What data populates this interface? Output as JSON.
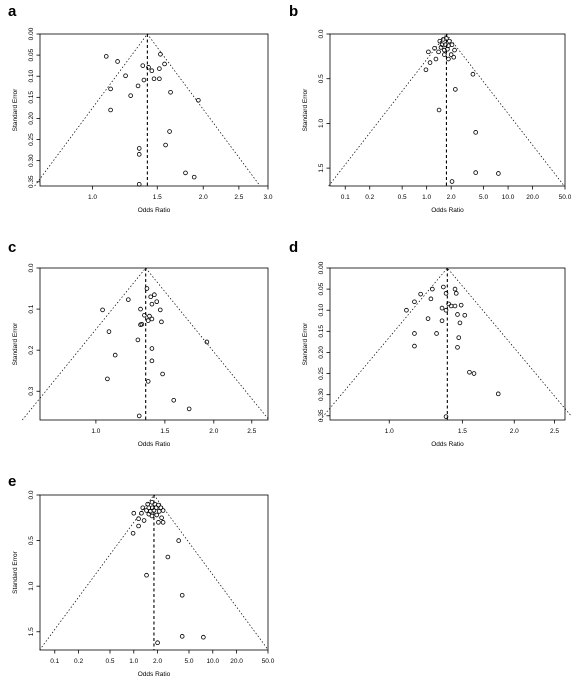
{
  "chart_data": [
    {
      "type": "scatter",
      "panel_label": "a",
      "xlabel": "Odds Ratio",
      "ylabel": "Standard Error",
      "x_scale": "log",
      "xlim": [
        0.72,
        3.0
      ],
      "ylim": [
        0.0,
        0.36
      ],
      "y_inverted": true,
      "x_ticks": [
        "1.0",
        "1.5",
        "2.0",
        "2.5",
        "3.0"
      ],
      "y_ticks": [
        "0.00",
        "0.05",
        "0.10",
        "0.15",
        "0.20",
        "0.25",
        "0.30",
        "0.35"
      ],
      "pooled_or": 1.41,
      "funnel": "95% pseudo-confidence limits (dotted)",
      "points": [
        {
          "x": 1.09,
          "y": 0.053
        },
        {
          "x": 1.17,
          "y": 0.065
        },
        {
          "x": 1.53,
          "y": 0.048
        },
        {
          "x": 1.37,
          "y": 0.075
        },
        {
          "x": 1.42,
          "y": 0.079
        },
        {
          "x": 1.45,
          "y": 0.087
        },
        {
          "x": 1.57,
          "y": 0.071
        },
        {
          "x": 1.52,
          "y": 0.082
        },
        {
          "x": 1.23,
          "y": 0.099
        },
        {
          "x": 1.38,
          "y": 0.109
        },
        {
          "x": 1.47,
          "y": 0.106
        },
        {
          "x": 1.52,
          "y": 0.106
        },
        {
          "x": 1.12,
          "y": 0.13
        },
        {
          "x": 1.33,
          "y": 0.123
        },
        {
          "x": 1.27,
          "y": 0.146
        },
        {
          "x": 1.63,
          "y": 0.138
        },
        {
          "x": 1.94,
          "y": 0.157
        },
        {
          "x": 1.12,
          "y": 0.18
        },
        {
          "x": 1.62,
          "y": 0.231
        },
        {
          "x": 1.58,
          "y": 0.263
        },
        {
          "x": 1.34,
          "y": 0.271
        },
        {
          "x": 1.34,
          "y": 0.285
        },
        {
          "x": 1.79,
          "y": 0.329
        },
        {
          "x": 1.89,
          "y": 0.339
        },
        {
          "x": 1.34,
          "y": 0.356
        }
      ]
    },
    {
      "type": "scatter",
      "panel_label": "b",
      "xlabel": "Odds Ratio",
      "ylabel": "Standard Error",
      "x_scale": "log",
      "xlim": [
        0.065,
        50
      ],
      "ylim": [
        0.0,
        1.7
      ],
      "y_inverted": true,
      "x_ticks": [
        "0.1",
        "0.2",
        "0.5",
        "1.0",
        "2.0",
        "5.0",
        "10.0",
        "20.0",
        "50.0"
      ],
      "y_ticks": [
        "0.0",
        "0.5",
        "1.0",
        "1.5"
      ],
      "pooled_or": 1.75,
      "funnel": "95% pseudo-confidence limits (dotted)",
      "points": [
        {
          "x": 1.45,
          "y": 0.08
        },
        {
          "x": 1.6,
          "y": 0.06
        },
        {
          "x": 1.75,
          "y": 0.05
        },
        {
          "x": 1.9,
          "y": 0.08
        },
        {
          "x": 1.55,
          "y": 0.12
        },
        {
          "x": 1.7,
          "y": 0.12
        },
        {
          "x": 1.85,
          "y": 0.13
        },
        {
          "x": 2.05,
          "y": 0.12
        },
        {
          "x": 1.25,
          "y": 0.16
        },
        {
          "x": 1.5,
          "y": 0.15
        },
        {
          "x": 1.65,
          "y": 0.18
        },
        {
          "x": 1.8,
          "y": 0.17
        },
        {
          "x": 2.2,
          "y": 0.18
        },
        {
          "x": 1.05,
          "y": 0.2
        },
        {
          "x": 1.4,
          "y": 0.2
        },
        {
          "x": 1.65,
          "y": 0.23
        },
        {
          "x": 2.0,
          "y": 0.23
        },
        {
          "x": 1.3,
          "y": 0.28
        },
        {
          "x": 1.85,
          "y": 0.28
        },
        {
          "x": 2.15,
          "y": 0.26
        },
        {
          "x": 1.1,
          "y": 0.32
        },
        {
          "x": 0.98,
          "y": 0.4
        },
        {
          "x": 3.7,
          "y": 0.45
        },
        {
          "x": 2.25,
          "y": 0.62
        },
        {
          "x": 1.42,
          "y": 0.85
        },
        {
          "x": 4.0,
          "y": 1.1
        },
        {
          "x": 4.0,
          "y": 1.55
        },
        {
          "x": 7.6,
          "y": 1.56
        },
        {
          "x": 2.05,
          "y": 1.65
        }
      ]
    },
    {
      "type": "scatter",
      "panel_label": "c",
      "xlabel": "Odds Ratio",
      "ylabel": "Standard Error",
      "x_scale": "log",
      "xlim": [
        0.72,
        2.75
      ],
      "ylim": [
        0.0,
        0.37
      ],
      "y_inverted": true,
      "x_ticks": [
        "1.0",
        "1.5",
        "2.0",
        "2.5"
      ],
      "y_ticks": [
        "0.0",
        "0.1",
        "0.2",
        "0.3"
      ],
      "pooled_or": 1.34,
      "funnel": "95% pseudo-confidence limits (dotted)",
      "points": [
        {
          "x": 1.35,
          "y": 0.05
        },
        {
          "x": 1.41,
          "y": 0.065
        },
        {
          "x": 1.38,
          "y": 0.07
        },
        {
          "x": 1.21,
          "y": 0.077
        },
        {
          "x": 1.43,
          "y": 0.082
        },
        {
          "x": 1.39,
          "y": 0.088
        },
        {
          "x": 1.3,
          "y": 0.1
        },
        {
          "x": 1.04,
          "y": 0.102
        },
        {
          "x": 1.46,
          "y": 0.102
        },
        {
          "x": 1.33,
          "y": 0.115
        },
        {
          "x": 1.37,
          "y": 0.117
        },
        {
          "x": 1.39,
          "y": 0.124
        },
        {
          "x": 1.3,
          "y": 0.138
        },
        {
          "x": 1.36,
          "y": 0.128
        },
        {
          "x": 1.47,
          "y": 0.131
        },
        {
          "x": 1.31,
          "y": 0.137
        },
        {
          "x": 1.08,
          "y": 0.155
        },
        {
          "x": 1.28,
          "y": 0.175
        },
        {
          "x": 1.92,
          "y": 0.18
        },
        {
          "x": 1.39,
          "y": 0.196
        },
        {
          "x": 1.12,
          "y": 0.212
        },
        {
          "x": 1.39,
          "y": 0.226
        },
        {
          "x": 1.48,
          "y": 0.258
        },
        {
          "x": 1.07,
          "y": 0.27
        },
        {
          "x": 1.36,
          "y": 0.276
        },
        {
          "x": 1.58,
          "y": 0.322
        },
        {
          "x": 1.73,
          "y": 0.343
        },
        {
          "x": 1.29,
          "y": 0.36
        }
      ]
    },
    {
      "type": "scatter",
      "panel_label": "d",
      "xlabel": "Odds Ratio",
      "ylabel": "Standard Error",
      "x_scale": "log",
      "xlim": [
        0.72,
        2.65
      ],
      "ylim": [
        0.0,
        0.36
      ],
      "y_inverted": true,
      "x_ticks": [
        "1.0",
        "1.5",
        "2.0",
        "2.5"
      ],
      "y_ticks": [
        "0.00",
        "0.05",
        "0.10",
        "0.15",
        "0.20",
        "0.25",
        "0.30",
        "0.35"
      ],
      "pooled_or": 1.38,
      "funnel": "95% pseudo-confidence limits (dotted)",
      "points": [
        {
          "x": 1.35,
          "y": 0.045
        },
        {
          "x": 1.27,
          "y": 0.05
        },
        {
          "x": 1.44,
          "y": 0.05
        },
        {
          "x": 1.37,
          "y": 0.06
        },
        {
          "x": 1.45,
          "y": 0.06
        },
        {
          "x": 1.19,
          "y": 0.062
        },
        {
          "x": 1.26,
          "y": 0.073
        },
        {
          "x": 1.15,
          "y": 0.08
        },
        {
          "x": 1.39,
          "y": 0.085
        },
        {
          "x": 1.41,
          "y": 0.09
        },
        {
          "x": 1.44,
          "y": 0.09
        },
        {
          "x": 1.49,
          "y": 0.088
        },
        {
          "x": 1.1,
          "y": 0.1
        },
        {
          "x": 1.34,
          "y": 0.095
        },
        {
          "x": 1.37,
          "y": 0.1
        },
        {
          "x": 1.46,
          "y": 0.11
        },
        {
          "x": 1.52,
          "y": 0.112
        },
        {
          "x": 1.24,
          "y": 0.12
        },
        {
          "x": 1.34,
          "y": 0.125
        },
        {
          "x": 1.48,
          "y": 0.13
        },
        {
          "x": 1.15,
          "y": 0.155
        },
        {
          "x": 1.3,
          "y": 0.155
        },
        {
          "x": 1.47,
          "y": 0.165
        },
        {
          "x": 1.15,
          "y": 0.185
        },
        {
          "x": 1.46,
          "y": 0.188
        },
        {
          "x": 1.56,
          "y": 0.247
        },
        {
          "x": 1.6,
          "y": 0.25
        },
        {
          "x": 1.83,
          "y": 0.298
        },
        {
          "x": 1.37,
          "y": 0.352
        }
      ]
    },
    {
      "type": "scatter",
      "panel_label": "e",
      "xlabel": "Odds Ratio",
      "ylabel": "Standard Error",
      "x_scale": "log",
      "xlim": [
        0.065,
        50
      ],
      "ylim": [
        0.0,
        1.7
      ],
      "y_inverted": true,
      "x_ticks": [
        "0.1",
        "0.2",
        "0.5",
        "1.0",
        "2.0",
        "5.0",
        "10.0",
        "20.0",
        "50.0"
      ],
      "y_ticks": [
        "0.0",
        "0.5",
        "1.0",
        "1.5"
      ],
      "pooled_or": 1.8,
      "funnel": "95% pseudo-confidence limits (dotted)",
      "points": [
        {
          "x": 1.5,
          "y": 0.1
        },
        {
          "x": 1.7,
          "y": 0.08
        },
        {
          "x": 1.85,
          "y": 0.1
        },
        {
          "x": 2.05,
          "y": 0.11
        },
        {
          "x": 1.55,
          "y": 0.14
        },
        {
          "x": 1.72,
          "y": 0.14
        },
        {
          "x": 1.92,
          "y": 0.14
        },
        {
          "x": 2.2,
          "y": 0.14
        },
        {
          "x": 1.3,
          "y": 0.14
        },
        {
          "x": 1.45,
          "y": 0.17
        },
        {
          "x": 1.62,
          "y": 0.18
        },
        {
          "x": 1.8,
          "y": 0.17
        },
        {
          "x": 2.1,
          "y": 0.18
        },
        {
          "x": 2.35,
          "y": 0.17
        },
        {
          "x": 1.0,
          "y": 0.2
        },
        {
          "x": 1.25,
          "y": 0.2
        },
        {
          "x": 1.55,
          "y": 0.21
        },
        {
          "x": 1.7,
          "y": 0.23
        },
        {
          "x": 1.95,
          "y": 0.22
        },
        {
          "x": 2.25,
          "y": 0.25
        },
        {
          "x": 1.15,
          "y": 0.26
        },
        {
          "x": 1.35,
          "y": 0.28
        },
        {
          "x": 2.05,
          "y": 0.3
        },
        {
          "x": 2.35,
          "y": 0.3
        },
        {
          "x": 1.15,
          "y": 0.34
        },
        {
          "x": 0.98,
          "y": 0.42
        },
        {
          "x": 3.7,
          "y": 0.5
        },
        {
          "x": 2.7,
          "y": 0.68
        },
        {
          "x": 1.45,
          "y": 0.88
        },
        {
          "x": 4.1,
          "y": 1.1
        },
        {
          "x": 4.1,
          "y": 1.55
        },
        {
          "x": 7.6,
          "y": 1.56
        },
        {
          "x": 2.0,
          "y": 1.62
        }
      ]
    }
  ]
}
